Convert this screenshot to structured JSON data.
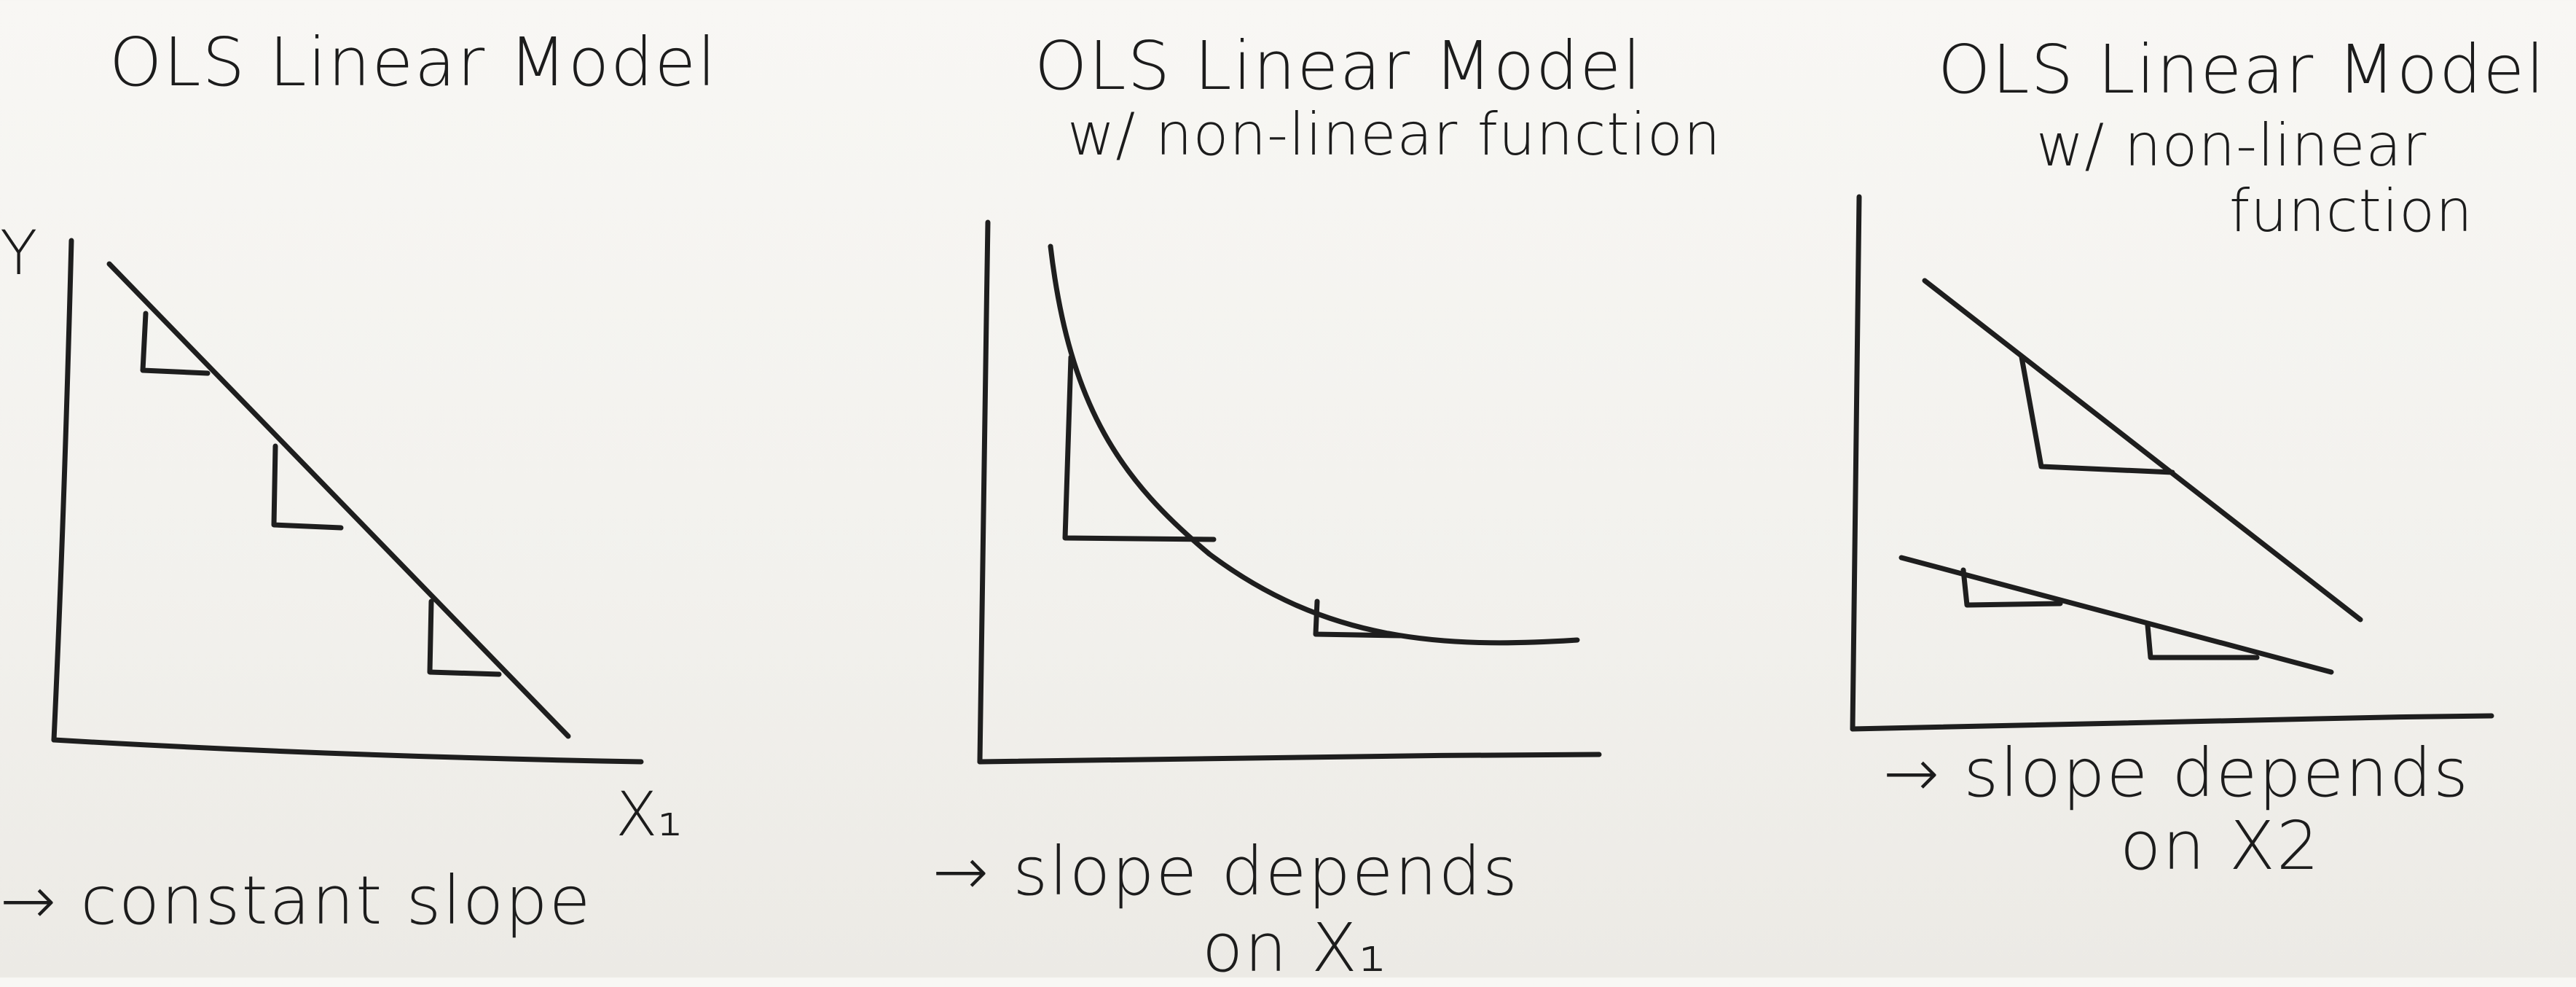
{
  "panels": [
    {
      "title": "OLS Linear Model",
      "subtitle": "",
      "y_label": "Y",
      "x_label": "X₁",
      "caption_line1": "→ constant slope",
      "caption_line2": ""
    },
    {
      "title": "OLS Linear Model",
      "subtitle": "w/ non-linear function",
      "y_label": "",
      "x_label": "",
      "caption_line1": "→ slope depends",
      "caption_line2": "on X₁"
    },
    {
      "title": "OLS Linear Model",
      "subtitle": "w/ non-linear",
      "subtitle_line2": "function",
      "y_label": "",
      "x_label": "",
      "caption_line1": "→ slope depends",
      "caption_line2": "on X2"
    }
  ],
  "ink_color": "#1e1e1e",
  "paper_color": "#f4f3ef"
}
